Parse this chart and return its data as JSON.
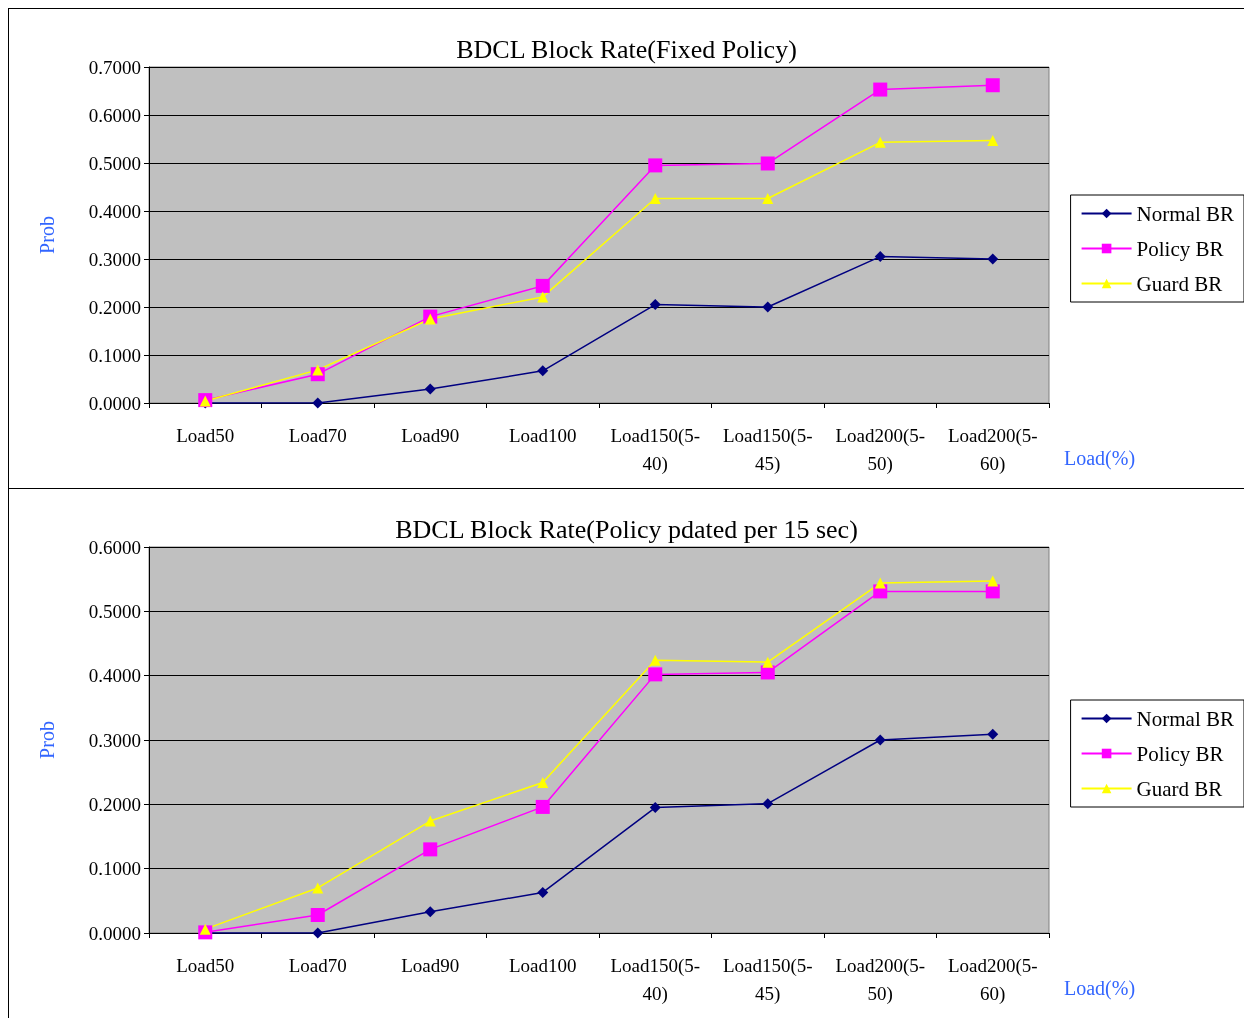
{
  "chart_data": [
    {
      "type": "line",
      "title": "BDCL Block Rate(Fixed Policy)",
      "xlabel": "Load(%)",
      "ylabel": "Prob",
      "categories": [
        "Load50",
        "Load70",
        "Load90",
        "Load100",
        "Load150(5-40)",
        "Load150(5-45)",
        "Load200(5-50)",
        "Load200(5-60)"
      ],
      "series": [
        {
          "name": "Normal BR",
          "color": "#000080",
          "marker": "diamond",
          "values": [
            0,
            0,
            0.029,
            0.067,
            0.205,
            0.2,
            0.305,
            0.3
          ]
        },
        {
          "name": "Policy BR",
          "color": "#ff00ff",
          "marker": "square",
          "values": [
            0.006,
            0.06,
            0.18,
            0.244,
            0.495,
            0.499,
            0.653,
            0.662
          ]
        },
        {
          "name": "Guard BR",
          "color": "#ffff00",
          "marker": "triangle",
          "values": [
            0.004,
            0.069,
            0.175,
            0.221,
            0.426,
            0.426,
            0.543,
            0.547
          ]
        }
      ],
      "ylim": [
        0,
        0.7
      ],
      "yticks": [
        {
          "value": 0,
          "label": "0.0000"
        },
        {
          "value": 0.1,
          "label": "0.1000"
        },
        {
          "value": 0.2,
          "label": "0.2000"
        },
        {
          "value": 0.3,
          "label": "0.3000"
        },
        {
          "value": 0.4,
          "label": "0.4000"
        },
        {
          "value": 0.5,
          "label": "0.5000"
        },
        {
          "value": 0.6,
          "label": "0.6000"
        },
        {
          "value": 0.7,
          "label": "0.7000"
        }
      ],
      "grid": "y",
      "legend": "right"
    },
    {
      "type": "line",
      "title": "BDCL Block Rate(Policy pdated per 15 sec)",
      "xlabel": "Load(%)",
      "ylabel": "Prob",
      "categories": [
        "Load50",
        "Load70",
        "Load90",
        "Load100",
        "Load150(5-40)",
        "Load150(5-45)",
        "Load200(5-50)",
        "Load200(5-60)"
      ],
      "series": [
        {
          "name": "Normal BR",
          "color": "#000080",
          "marker": "diamond",
          "values": [
            0,
            0,
            0.033,
            0.063,
            0.195,
            0.201,
            0.3,
            0.309
          ]
        },
        {
          "name": "Policy BR",
          "color": "#ff00ff",
          "marker": "square",
          "values": [
            0.001,
            0.028,
            0.13,
            0.196,
            0.402,
            0.405,
            0.531,
            0.531
          ]
        },
        {
          "name": "Guard BR",
          "color": "#ffff00",
          "marker": "triangle",
          "values": [
            0.006,
            0.07,
            0.174,
            0.234,
            0.424,
            0.421,
            0.544,
            0.547
          ]
        }
      ],
      "ylim": [
        0,
        0.6
      ],
      "yticks": [
        {
          "value": 0,
          "label": "0.0000"
        },
        {
          "value": 0.1,
          "label": "0.1000"
        },
        {
          "value": 0.2,
          "label": "0.2000"
        },
        {
          "value": 0.3,
          "label": "0.3000"
        },
        {
          "value": 0.4,
          "label": "0.4000"
        },
        {
          "value": 0.5,
          "label": "0.5000"
        },
        {
          "value": 0.6,
          "label": "0.6000"
        }
      ],
      "grid": "y",
      "legend": "right"
    }
  ]
}
